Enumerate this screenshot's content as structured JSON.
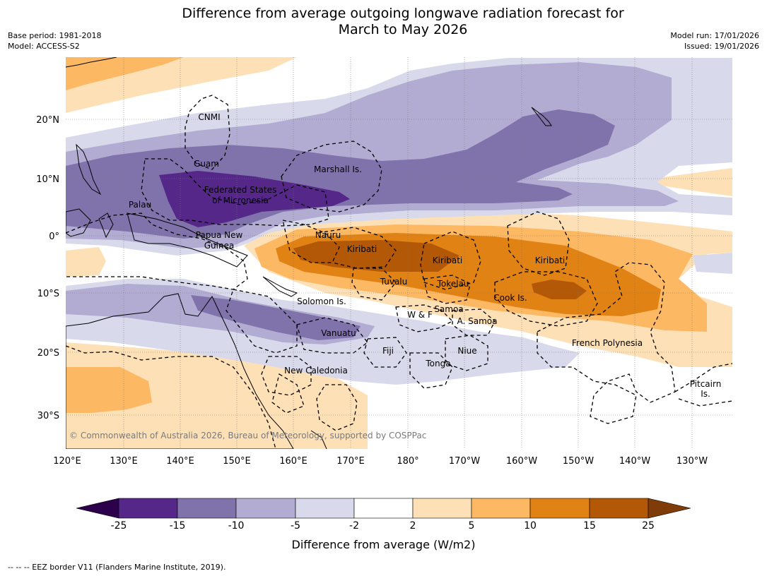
{
  "title_line1": "Difference from average outgoing longwave radiation forecast for",
  "title_line2": "March to May 2026",
  "meta_left": {
    "base_period": "Base period: 1981-2018",
    "model": "Model: ACCESS-S2"
  },
  "meta_right": {
    "model_run": "Model run: 17/01/2026",
    "issued": "Issued: 19/01/2026"
  },
  "lat_labels": [
    "20°N",
    "10°N",
    "0°",
    "10°S",
    "20°S",
    "30°S"
  ],
  "lon_labels": [
    "120°E",
    "130°E",
    "140°E",
    "150°E",
    "160°E",
    "170°E",
    "180°",
    "170°W",
    "160°W",
    "150°W",
    "140°W",
    "130°W"
  ],
  "places": {
    "cnmi": "CNMI",
    "guam": "Guam",
    "marshall": "Marshall Is.",
    "fsm1": "Federated States",
    "fsm2": "of Micronesia",
    "palau": "Palau",
    "png1": "Papua New",
    "png2": "Guinea",
    "nauru": "Nauru",
    "kiribati_w": "Kiribati",
    "kiribati_c": "Kiribati",
    "kiribati_e": "Kiribati",
    "tuvalu": "Tuvalu",
    "tokelau": "Tokelau",
    "cook": "Cook Is.",
    "solomon": "Solomon Is.",
    "wf": "W & F",
    "samoa": "Samoa",
    "asamoa": "A. Samoa",
    "vanuatu": "Vanuatu",
    "fiji": "Fiji",
    "niue": "Niue",
    "tonga": "Tonga",
    "frpoly": "French Polynesia",
    "newcal": "New Caledonia",
    "pitcairn1": "Pitcairn",
    "pitcairn2": "Is."
  },
  "copyright": "© Commonwealth of Australia 2026, Bureau of Meteorology, supported by COSPPac",
  "colorbar": {
    "ticks": [
      "-25",
      "-15",
      "-10",
      "-5",
      "-2",
      "2",
      "5",
      "10",
      "15",
      "25"
    ],
    "colors": [
      "#2d004b",
      "#542788",
      "#8073ac",
      "#b2abd2",
      "#d8daeb",
      "#ffffff",
      "#fee0b6",
      "#fdb863",
      "#e08214",
      "#b35806",
      "#7f3b08"
    ],
    "label": "Difference from average (W/m2)"
  },
  "footnote": "-- -- -- EEZ border V11 (Flanders Marine Institute, 2019)."
}
